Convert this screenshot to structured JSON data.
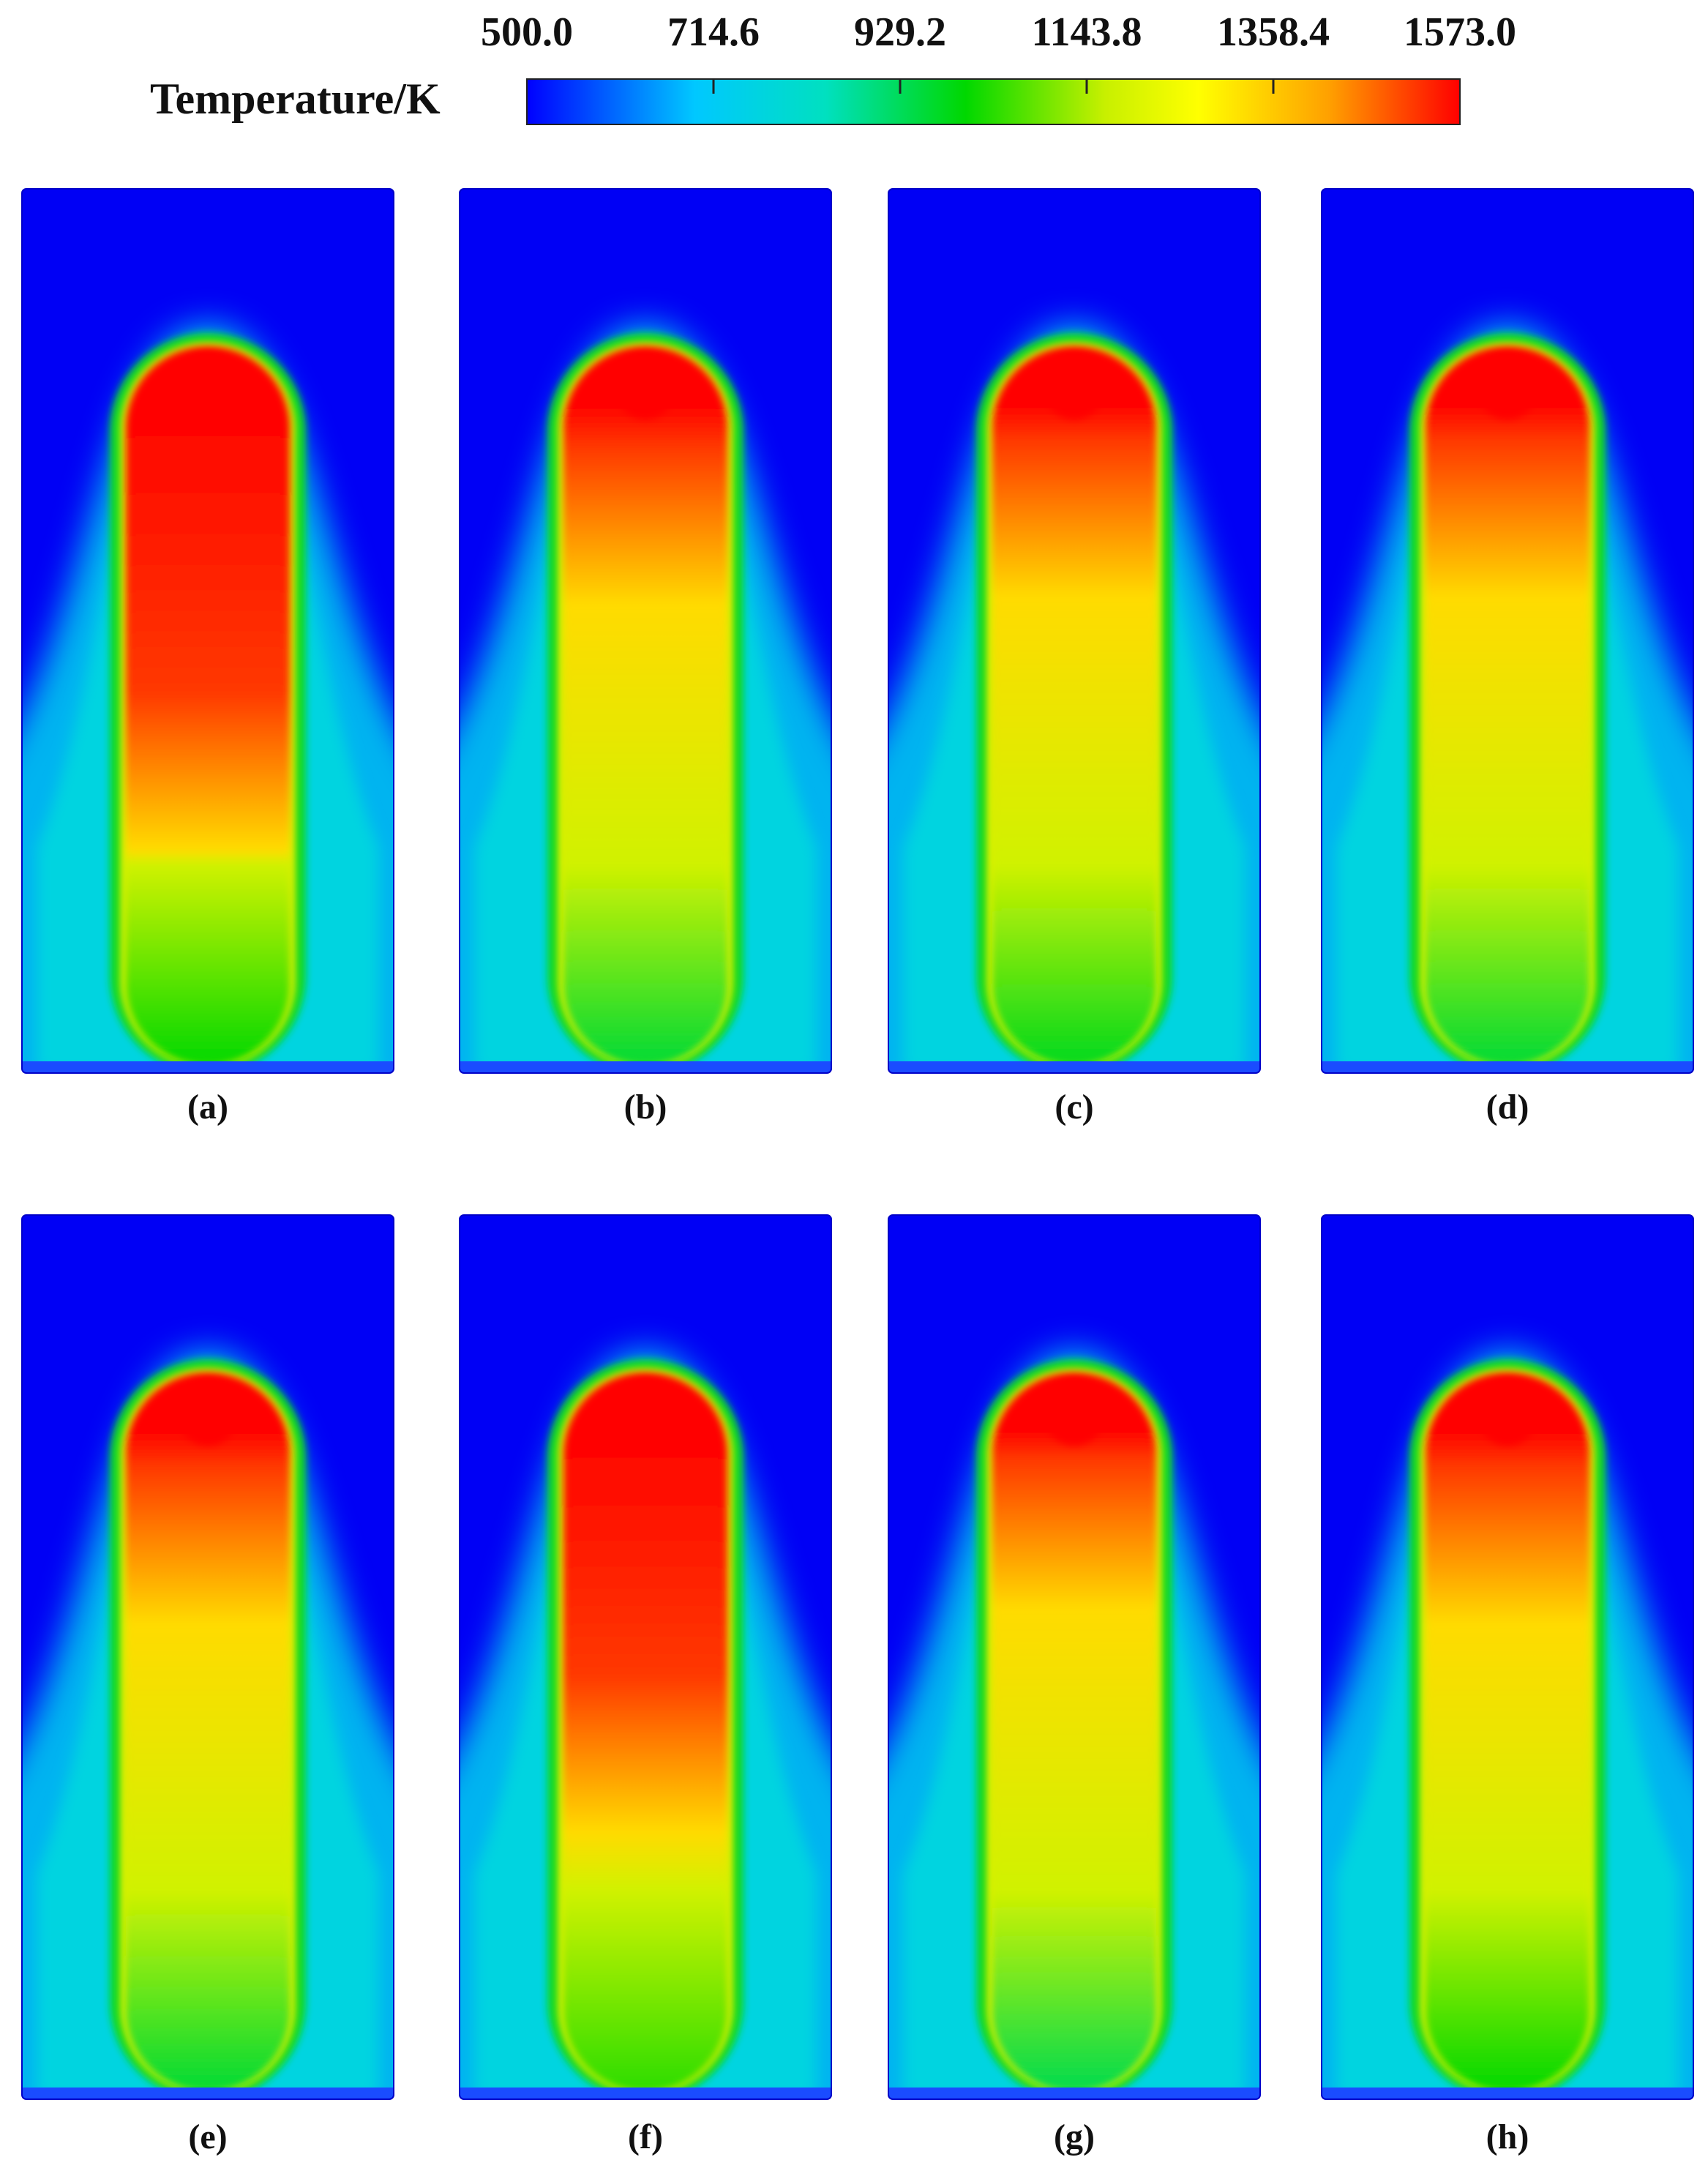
{
  "chart_data": {
    "type": "heatmap",
    "colorbar": {
      "label": "Temperature/K",
      "min": 500.0,
      "max": 1573.0,
      "ticks": [
        "500.0",
        "714.6",
        "929.2",
        "1143.8",
        "1358.4",
        "1573.0"
      ],
      "colors": [
        "#0000ff",
        "#00c8ff",
        "#00e0c0",
        "#00d800",
        "#c8f000",
        "#ffff00",
        "#ffa000",
        "#ff0000"
      ]
    },
    "panels": [
      {
        "label": "(a)",
        "peak_temperature": 1573.0,
        "red_extent": 0.48,
        "core_bottom_temperature": 1000
      },
      {
        "label": "(b)",
        "peak_temperature": 1573.0,
        "red_extent": 0.14,
        "core_bottom_temperature": 960
      },
      {
        "label": "(c)",
        "peak_temperature": 1573.0,
        "red_extent": 0.13,
        "core_bottom_temperature": 980
      },
      {
        "label": "(d)",
        "peak_temperature": 1573.0,
        "red_extent": 0.13,
        "core_bottom_temperature": 960
      },
      {
        "label": "(e)",
        "peak_temperature": 1573.0,
        "red_extent": 0.13,
        "core_bottom_temperature": 960
      },
      {
        "label": "(f)",
        "peak_temperature": 1573.0,
        "red_extent": 0.42,
        "core_bottom_temperature": 1040
      },
      {
        "label": "(g)",
        "peak_temperature": 1573.0,
        "red_extent": 0.11,
        "core_bottom_temperature": 940
      },
      {
        "label": "(h)",
        "peak_temperature": 1573.0,
        "red_extent": 0.13,
        "core_bottom_temperature": 1000
      }
    ]
  }
}
